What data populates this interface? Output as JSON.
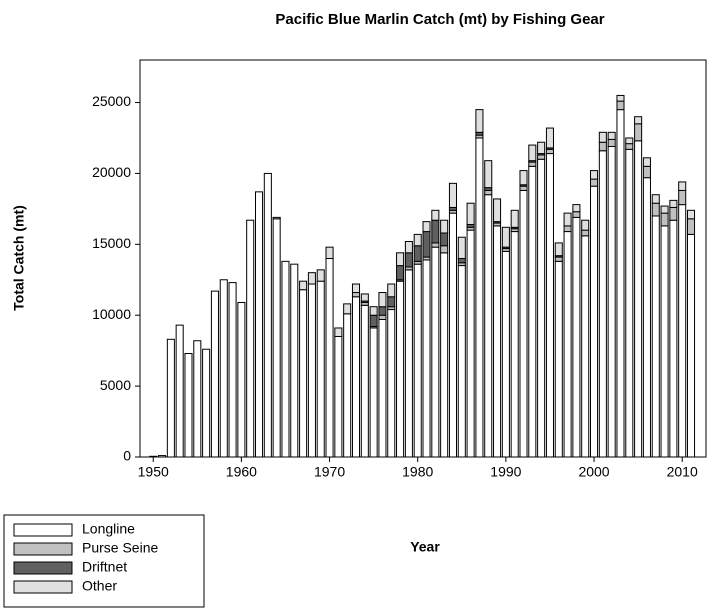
{
  "chart_data": {
    "type": "stacked-bar",
    "title": "Pacific Blue Marlin Catch (mt) by Fishing Gear",
    "x_label": "Year",
    "y_label": "Total Catch (mt)",
    "x": [
      1950,
      1951,
      1952,
      1953,
      1954,
      1955,
      1956,
      1957,
      1958,
      1959,
      1960,
      1961,
      1962,
      1963,
      1964,
      1965,
      1966,
      1967,
      1968,
      1969,
      1970,
      1971,
      1972,
      1973,
      1974,
      1975,
      1976,
      1977,
      1978,
      1979,
      1980,
      1981,
      1982,
      1983,
      1984,
      1985,
      1986,
      1987,
      1988,
      1989,
      1990,
      1991,
      1992,
      1993,
      1994,
      1995,
      1996,
      1997,
      1998,
      1999,
      2000,
      2001,
      2002,
      2003,
      2004,
      2005,
      2006,
      2007,
      2008,
      2009,
      2010,
      2011
    ],
    "series": [
      {
        "name": "Longline",
        "color": "#ffffff",
        "values": [
          50,
          100,
          8300,
          9300,
          7300,
          8200,
          7600,
          11700,
          12500,
          12300,
          10900,
          16700,
          18700,
          20000,
          16800,
          13800,
          13600,
          11800,
          12200,
          12400,
          14000,
          8500,
          10100,
          11300,
          10700,
          9100,
          9700,
          10400,
          12400,
          13200,
          13600,
          13900,
          14800,
          14400,
          17200,
          13500,
          16000,
          22500,
          18500,
          16300,
          14500,
          15900,
          18800,
          20500,
          21000,
          21400,
          13800,
          15900,
          16900,
          15600,
          19100,
          21600,
          21900,
          24500,
          21700,
          22300,
          19700,
          17000,
          16300,
          16700,
          17800,
          15700
        ]
      },
      {
        "name": "Purse Seine",
        "color": "#c0c0c0",
        "values": [
          0,
          0,
          0,
          0,
          0,
          0,
          0,
          0,
          0,
          0,
          0,
          0,
          0,
          0,
          0,
          0,
          0,
          0,
          0,
          0,
          0,
          0,
          0,
          300,
          200,
          100,
          300,
          200,
          100,
          200,
          200,
          200,
          300,
          500,
          200,
          200,
          200,
          200,
          300,
          200,
          200,
          200,
          300,
          300,
          300,
          300,
          300,
          400,
          400,
          400,
          500,
          600,
          500,
          600,
          400,
          1200,
          800,
          900,
          900,
          900,
          1000,
          1100
        ]
      },
      {
        "name": "Driftnet",
        "color": "#606060",
        "values": [
          0,
          0,
          0,
          0,
          0,
          0,
          0,
          0,
          0,
          0,
          0,
          0,
          0,
          0,
          0,
          0,
          0,
          0,
          0,
          0,
          0,
          0,
          0,
          0,
          100,
          800,
          600,
          700,
          1000,
          1000,
          1100,
          1800,
          1600,
          900,
          200,
          300,
          200,
          200,
          200,
          100,
          100,
          100,
          100,
          100,
          100,
          100,
          100,
          0,
          0,
          0,
          0,
          0,
          0,
          0,
          0,
          0,
          0,
          0,
          0,
          0,
          0,
          0
        ]
      },
      {
        "name": "Other",
        "color": "#e0e0e0",
        "values": [
          0,
          0,
          0,
          0,
          0,
          0,
          0,
          0,
          0,
          0,
          0,
          0,
          0,
          0,
          100,
          0,
          0,
          600,
          800,
          800,
          800,
          600,
          700,
          600,
          500,
          600,
          1000,
          900,
          900,
          800,
          800,
          700,
          700,
          900,
          1700,
          1500,
          1500,
          1600,
          1900,
          1600,
          1400,
          1200,
          1000,
          1100,
          800,
          1400,
          900,
          900,
          500,
          700,
          600,
          700,
          500,
          400,
          400,
          500,
          600,
          600,
          500,
          500,
          600,
          600
        ]
      }
    ],
    "xlim": [
      1948.5,
      2012.7
    ],
    "ylim": [
      0,
      28000
    ],
    "xticks": [
      1950,
      1960,
      1970,
      1980,
      1990,
      2000,
      2010
    ],
    "yticks": [
      0,
      5000,
      10000,
      15000,
      20000,
      25000
    ],
    "legend": "bottom-left"
  }
}
